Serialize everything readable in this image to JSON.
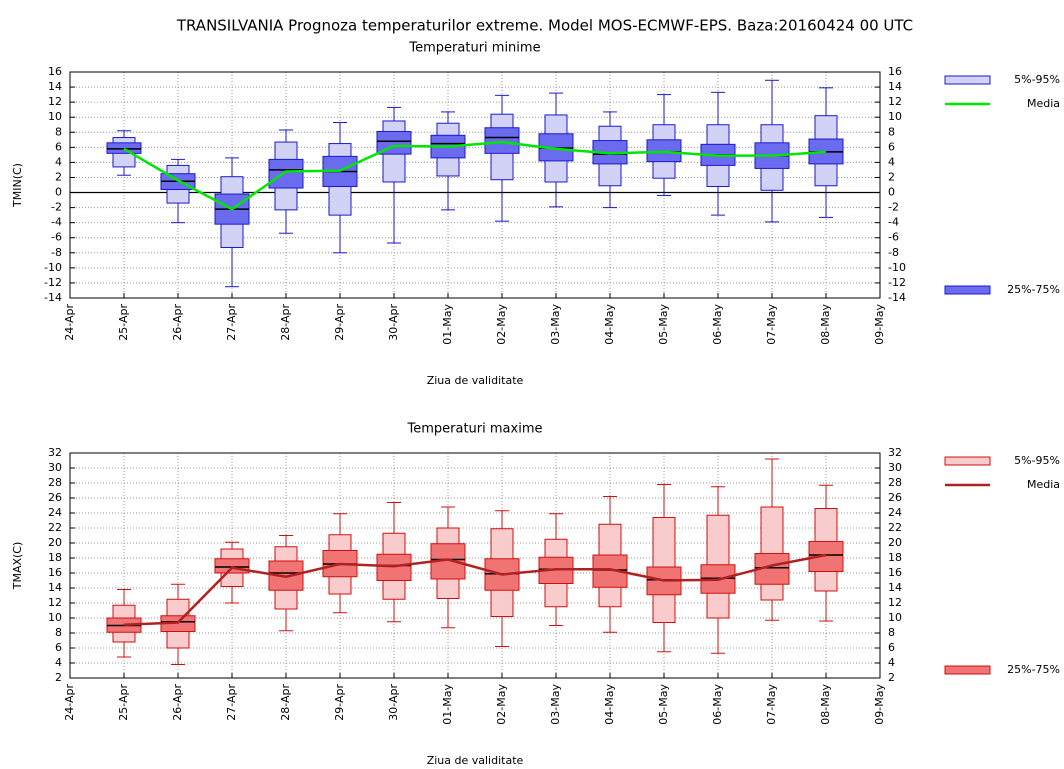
{
  "title": "TRANSILVANIA  Prognoza temperaturilor extreme.  Model MOS-ECMWF-EPS. Baza:20160424 00 UTC",
  "chart_data": [
    {
      "type": "box",
      "title": "Temperaturi minime",
      "title_color": "#0000ff",
      "xlabel": "Ziua de validitate",
      "ylabel": "TMIN(C)",
      "categories": [
        "24-Apr",
        "25-Apr",
        "26-Apr",
        "27-Apr",
        "28-Apr",
        "29-Apr",
        "30-Apr",
        "01-May",
        "02-May",
        "03-May",
        "04-May",
        "05-May",
        "06-May",
        "07-May",
        "08-May",
        "09-May"
      ],
      "ylim": [
        -14,
        16
      ],
      "yticks": [
        16,
        14,
        12,
        10,
        8,
        6,
        4,
        2,
        0,
        -2,
        -4,
        -6,
        -8,
        -10,
        -12,
        -14
      ],
      "grid": true,
      "hline": 0,
      "edge_color": "#1a1acc",
      "whiskers": {
        "low": [
          null,
          2.3,
          -4,
          -12.5,
          -5.4,
          -8,
          -6.7,
          -2.3,
          -3.8,
          -1.9,
          -2,
          -0.4,
          -3,
          -3.9,
          -3.3,
          null
        ],
        "high": [
          null,
          8.2,
          4.4,
          4.6,
          8.3,
          9.3,
          11.3,
          10.7,
          12.9,
          13.2,
          10.7,
          13,
          13.3,
          14.9,
          13.9,
          null
        ]
      },
      "outer_box": {
        "name": "5%-95%",
        "color": "#d2d2f6",
        "low": [
          null,
          3.4,
          -1.4,
          -7.3,
          -2.3,
          -3,
          1.4,
          2.2,
          1.7,
          1.4,
          0.9,
          1.9,
          0.8,
          0.3,
          0.9,
          null
        ],
        "high": [
          null,
          7.3,
          3.6,
          2.1,
          6.7,
          6.5,
          9.5,
          9.2,
          10.4,
          10.3,
          8.8,
          9,
          9,
          9,
          10.2,
          null
        ]
      },
      "inner_box": {
        "name": "25%-75%",
        "color": "#6b6bef",
        "low": [
          null,
          5.2,
          0.4,
          -4.2,
          0.6,
          0.8,
          5.1,
          4.6,
          5.2,
          4.2,
          3.8,
          4.1,
          3.6,
          3.2,
          3.8,
          null
        ],
        "high": [
          null,
          6.6,
          2.5,
          -0.2,
          4.4,
          4.8,
          8.1,
          7.6,
          8.6,
          7.8,
          6.9,
          7,
          6.4,
          6.6,
          7.1,
          null
        ]
      },
      "median": [
        null,
        5.8,
        1.5,
        -2.2,
        3,
        2.8,
        6.8,
        6.5,
        7.3,
        5.9,
        5.1,
        5.4,
        5,
        4.9,
        5.4,
        null
      ],
      "mean": {
        "name": "Media",
        "color": "#00e600",
        "values": [
          null,
          5.8,
          1.6,
          -2.2,
          2.8,
          2.9,
          6.2,
          6.1,
          6.7,
          5.8,
          5.2,
          5.4,
          4.9,
          4.9,
          5.4,
          null
        ]
      }
    },
    {
      "type": "box",
      "title": "Temperaturi maxime",
      "title_color": "#ff0000",
      "xlabel": "Ziua de validitate",
      "ylabel": "TMAX(C)",
      "categories": [
        "24-Apr",
        "25-Apr",
        "26-Apr",
        "27-Apr",
        "28-Apr",
        "29-Apr",
        "30-Apr",
        "01-May",
        "02-May",
        "03-May",
        "04-May",
        "05-May",
        "06-May",
        "07-May",
        "08-May",
        "09-May"
      ],
      "ylim": [
        2,
        32
      ],
      "yticks": [
        32,
        30,
        28,
        26,
        24,
        22,
        20,
        18,
        16,
        14,
        12,
        10,
        8,
        6,
        4,
        2
      ],
      "grid": true,
      "edge_color": "#d01010",
      "whiskers": {
        "low": [
          null,
          4.8,
          3.8,
          12,
          8.3,
          10.7,
          9.5,
          8.7,
          6.2,
          9,
          8.1,
          5.5,
          5.3,
          9.7,
          9.6,
          null
        ],
        "high": [
          null,
          13.8,
          14.5,
          20.1,
          21,
          23.9,
          25.4,
          24.8,
          24.3,
          23.9,
          26.2,
          27.8,
          27.5,
          31.2,
          27.7,
          null
        ]
      },
      "outer_box": {
        "name": "5%-95%",
        "color": "#f8cccc",
        "low": [
          null,
          6.8,
          6,
          14.2,
          11.2,
          13.2,
          12.5,
          12.6,
          10.2,
          11.5,
          11.5,
          9.4,
          10,
          12.4,
          13.6,
          null
        ],
        "high": [
          null,
          11.7,
          12.5,
          19.2,
          19.5,
          21.1,
          21.3,
          22,
          21.9,
          20.5,
          22.5,
          23.4,
          23.7,
          24.8,
          24.6,
          null
        ]
      },
      "inner_box": {
        "name": "25%-75%",
        "color": "#f07474",
        "low": [
          null,
          8.1,
          8.2,
          16,
          13.7,
          15.5,
          15,
          15.2,
          13.7,
          14.6,
          14.1,
          13.1,
          13.3,
          14.5,
          16.2,
          null
        ],
        "high": [
          null,
          10,
          10.3,
          17.9,
          17.6,
          19,
          18.5,
          19.9,
          17.9,
          18.1,
          18.4,
          16.8,
          17.1,
          18.6,
          20.2,
          null
        ]
      },
      "median": [
        null,
        9,
        9.5,
        16.8,
        16,
        17.2,
        17,
        17.8,
        15.9,
        16.5,
        16.4,
        15.1,
        15.3,
        16.7,
        18.4,
        null
      ],
      "mean": {
        "name": "Media",
        "color": "#b02222",
        "values": [
          null,
          9.1,
          9.4,
          16.7,
          15.5,
          17.2,
          16.9,
          17.8,
          15.8,
          16.5,
          16.5,
          15,
          15.1,
          17,
          18.4,
          null
        ]
      }
    }
  ]
}
